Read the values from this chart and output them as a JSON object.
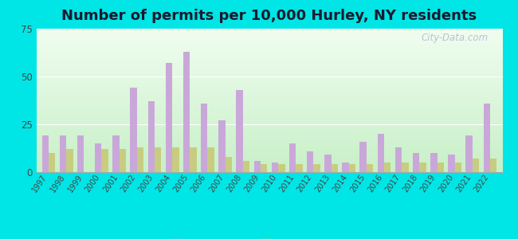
{
  "title": "Number of permits per 10,000 Hurley, NY residents",
  "years": [
    1997,
    1998,
    1999,
    2000,
    2001,
    2002,
    2003,
    2004,
    2005,
    2006,
    2007,
    2008,
    2009,
    2010,
    2011,
    2012,
    2013,
    2014,
    2015,
    2016,
    2017,
    2018,
    2019,
    2020,
    2021,
    2022
  ],
  "hurley": [
    19,
    19,
    19,
    15,
    19,
    44,
    37,
    57,
    63,
    36,
    27,
    43,
    6,
    5,
    15,
    11,
    9,
    5,
    16,
    20,
    13,
    10,
    10,
    9,
    19,
    36
  ],
  "ny_avg": [
    10,
    12,
    0,
    12,
    12,
    13,
    13,
    13,
    13,
    13,
    8,
    6,
    4,
    4,
    4,
    4,
    4,
    4,
    4,
    5,
    5,
    5,
    5,
    5,
    7,
    7
  ],
  "hurley_color": "#c9a8d9",
  "ny_avg_color": "#c8cc80",
  "fig_color": "#00e5e5",
  "ylim": [
    0,
    75
  ],
  "yticks": [
    0,
    25,
    50,
    75
  ],
  "bar_width": 0.38,
  "title_fontsize": 13,
  "watermark": "City-Data.com"
}
